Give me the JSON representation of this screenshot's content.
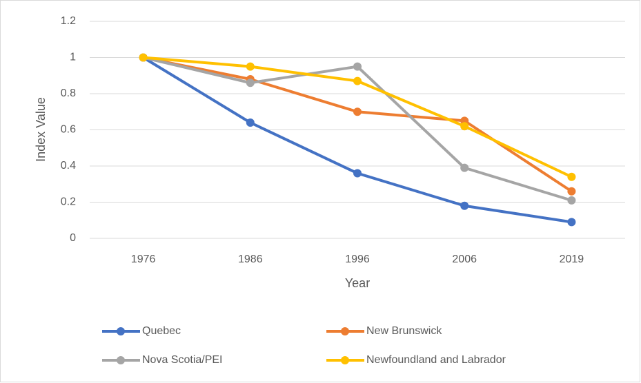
{
  "chart_data": {
    "type": "line",
    "x_label": "Year",
    "y_label": "Index Value",
    "categories": [
      "1976",
      "1986",
      "1996",
      "2006",
      "2019"
    ],
    "series": [
      {
        "name": "Quebec",
        "color": "#4472c4",
        "values": [
          1.0,
          0.64,
          0.36,
          0.18,
          0.09
        ]
      },
      {
        "name": "New Brunswick",
        "color": "#ed7d31",
        "values": [
          1.0,
          0.88,
          0.7,
          0.65,
          0.26
        ]
      },
      {
        "name": "Nova Scotia/PEI",
        "color": "#a5a5a5",
        "values": [
          1.0,
          0.86,
          0.95,
          0.39,
          0.21
        ]
      },
      {
        "name": "Newfoundland and Labrador",
        "color": "#ffc000",
        "values": [
          1.0,
          0.95,
          0.87,
          0.62,
          0.34
        ]
      }
    ],
    "ylim": [
      0,
      1.2
    ],
    "yticks": [
      0,
      0.2,
      0.4,
      0.6,
      0.8,
      1,
      1.2
    ],
    "grid": true,
    "legend": "bottom"
  }
}
